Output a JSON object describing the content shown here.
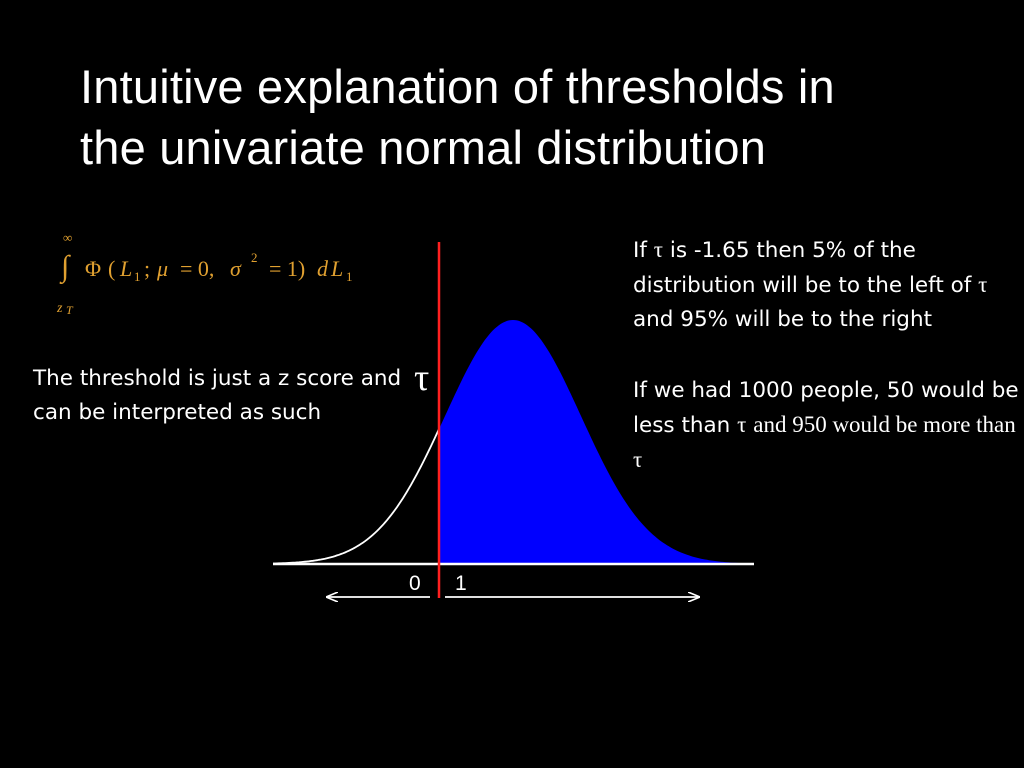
{
  "slide": {
    "title_line1": "Intuitive explanation of thresholds in",
    "title_line2": "the univariate normal distribution"
  },
  "formula": {
    "upper_limit": "∞",
    "lower_limit": "z",
    "lower_limit_sub": "T",
    "integral": "∫",
    "phi": "Φ",
    "open_paren": "(",
    "var": "L",
    "var_sub": "1",
    "semicolon": ";",
    "mu": "μ",
    "mu_eq": "= 0,",
    "sigma": "σ",
    "sigma_sup": "2",
    "sigma_eq": "= 1)",
    "d": "d",
    "dvar": "L",
    "dvar_sub": "1"
  },
  "notes": {
    "left_text": "The threshold is just a z score and can be interpreted as such",
    "right1_prefix": "If",
    "right1_tau": "τ",
    "right1_rest": "is -1.65 then 5% of the distribution will be to the left of",
    "right1_tau2": "τ",
    "right1_end": "and 95% will be to the right",
    "right2_text": "If we had 1000 people, 50 would be less than",
    "right2_tau": "τ",
    "right2_mid": "and 950 would be more than",
    "right2_tau2": "τ"
  },
  "diagram": {
    "tau_label": "τ",
    "zero_label": "0",
    "one_label": "1",
    "colors": {
      "fill": "#0000ff",
      "threshold": "#ff2020",
      "curve": "#ffffff",
      "formula": "#e0a030"
    }
  }
}
